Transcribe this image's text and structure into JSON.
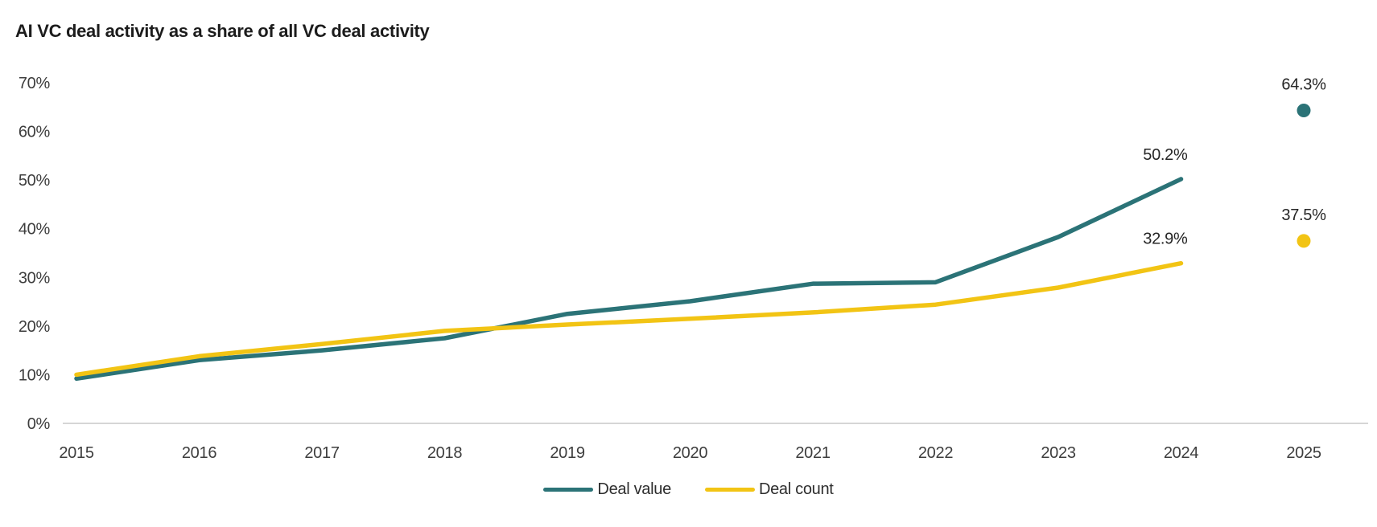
{
  "page": {
    "background": "#ffffff"
  },
  "header": {
    "title": "AI VC deal activity as a share of all VC deal activity"
  },
  "chart_data": {
    "type": "line",
    "title": "AI VC deal activity as a share of all VC deal activity",
    "categories": [
      "2015",
      "2016",
      "2017",
      "2018",
      "2019",
      "2020",
      "2021",
      "2022",
      "2023",
      "2024",
      "2025"
    ],
    "series": [
      {
        "name": "Deal value",
        "color": "#2b7377",
        "x": [
          2015,
          2016,
          2017,
          2018,
          2019,
          2020,
          2021,
          2022,
          2023,
          2024
        ],
        "values": [
          9.2,
          13.0,
          15.0,
          17.5,
          22.5,
          25.1,
          28.7,
          29.0,
          38.3,
          50.2
        ],
        "end_label": "50.2%"
      },
      {
        "name": "Deal count",
        "color": "#f2c414",
        "x": [
          2015,
          2016,
          2017,
          2018,
          2019,
          2020,
          2021,
          2022,
          2023,
          2024
        ],
        "values": [
          10.0,
          13.8,
          16.3,
          19.0,
          20.3,
          21.5,
          22.8,
          24.4,
          27.9,
          32.9
        ],
        "end_label": "32.9%"
      }
    ],
    "point_markers_2025": [
      {
        "series": "Deal value",
        "x": 2025,
        "value": 64.3,
        "label": "64.3%",
        "color": "#2b7377"
      },
      {
        "series": "Deal count",
        "x": 2025,
        "value": 37.5,
        "label": "37.5%",
        "color": "#f2c414"
      }
    ],
    "xlabel": "",
    "ylabel": "",
    "ylim": [
      0,
      70
    ],
    "yticks": [
      {
        "value": 0,
        "label": "0%"
      },
      {
        "value": 10,
        "label": "10%"
      },
      {
        "value": 20,
        "label": "20%"
      },
      {
        "value": 30,
        "label": "30%"
      },
      {
        "value": 40,
        "label": "40%"
      },
      {
        "value": 50,
        "label": "50%"
      },
      {
        "value": 60,
        "label": "60%"
      },
      {
        "value": 70,
        "label": "70%"
      }
    ],
    "grid": "baseline-only",
    "baseline_color": "#d6d6d6",
    "legend_position": "bottom-center",
    "legend": [
      "Deal value",
      "Deal count"
    ]
  }
}
